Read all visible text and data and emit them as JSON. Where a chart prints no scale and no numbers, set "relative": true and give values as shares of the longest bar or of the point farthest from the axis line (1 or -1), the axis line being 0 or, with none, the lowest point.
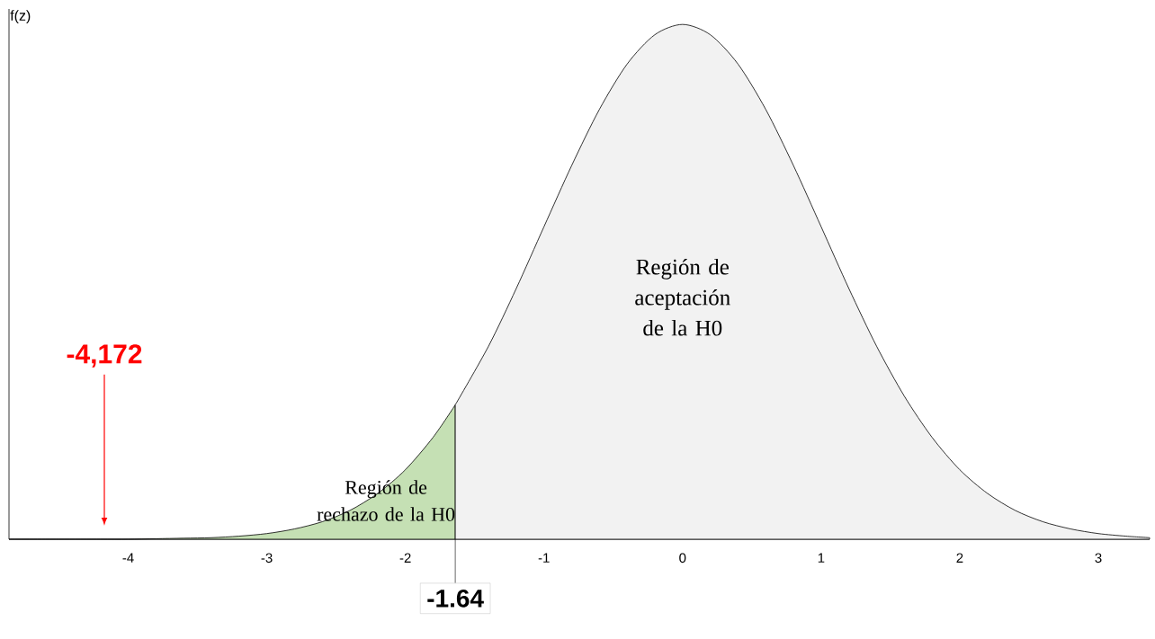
{
  "chart_data": {
    "type": "area",
    "relative": true,
    "ylabel": "f(z)",
    "xlim": [
      -4.86,
      3.37
    ],
    "xticks": [
      -4,
      -3,
      -2,
      -1,
      0,
      1,
      2,
      3
    ],
    "series": [
      {
        "color": "#c5e0b4",
        "x": [
          -4.86,
          -4.5,
          -4.2,
          -4.0,
          -3.8,
          -3.6,
          -3.4,
          -3.2,
          -3.0,
          -2.8,
          -2.6,
          -2.4,
          -2.2,
          -2.0,
          -1.8,
          -1.64
        ],
        "values": [
          0.0,
          0.0,
          0.0,
          0.0,
          0.001,
          0.002,
          0.003,
          0.006,
          0.011,
          0.02,
          0.034,
          0.056,
          0.089,
          0.135,
          0.198,
          0.261
        ]
      },
      {
        "color": "#f2f2f2",
        "x": [
          -1.64,
          -1.4,
          -1.2,
          -1.0,
          -0.8,
          -0.6,
          -0.4,
          -0.2,
          0.0,
          0.2,
          0.4,
          0.6,
          0.8,
          1.0,
          1.2,
          1.4,
          1.6,
          1.8,
          2.0,
          2.2,
          2.4,
          2.6,
          2.8,
          3.0,
          3.2,
          3.37
        ],
        "values": [
          0.261,
          0.375,
          0.487,
          0.607,
          0.726,
          0.835,
          0.923,
          0.98,
          1.0,
          0.98,
          0.923,
          0.835,
          0.726,
          0.607,
          0.487,
          0.375,
          0.278,
          0.198,
          0.135,
          0.089,
          0.056,
          0.034,
          0.02,
          0.011,
          0.006,
          0.003
        ]
      }
    ],
    "ref_lines": [
      {
        "axis": "x",
        "value": -1.64,
        "label": "-1.64"
      },
      {
        "axis": "x",
        "value": -4.172,
        "label": "-4,172",
        "color": "#ff0000"
      }
    ],
    "annotations": [
      "Región de rechazo de la H0",
      "Región de aceptación de la H0"
    ]
  }
}
